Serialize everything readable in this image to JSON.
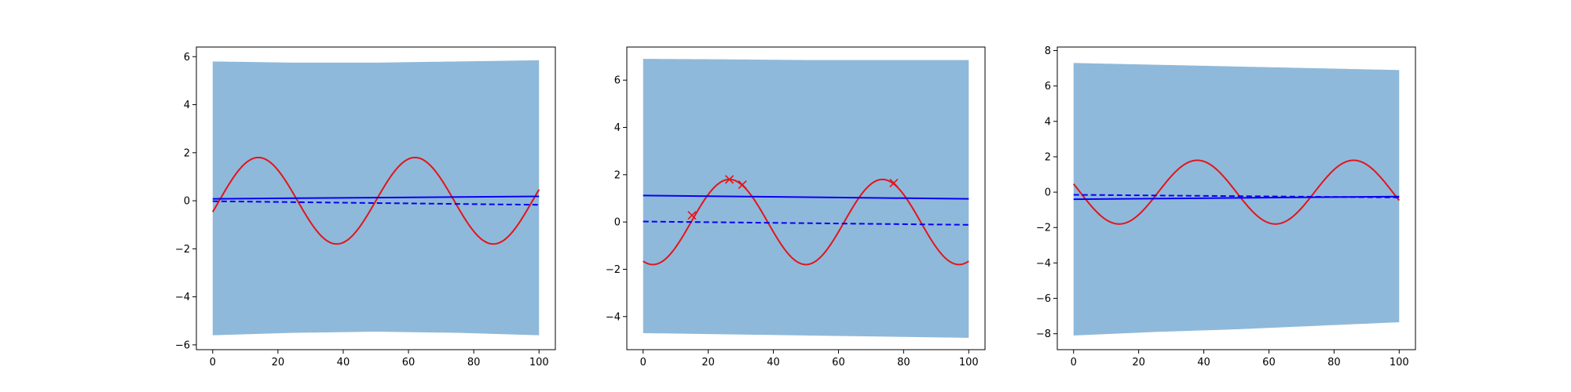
{
  "figure": {
    "background": "#ffffff"
  },
  "colors": {
    "band": "#8fb9da",
    "true_curve": "#e3141b",
    "mean_line": "#0a00f5",
    "observation": "#e3141b",
    "frame": "#000000"
  },
  "chart_data": [
    {
      "type": "line",
      "xlim": [
        -5,
        105
      ],
      "ylim": [
        -6.2,
        6.4
      ],
      "x_ticks": [
        0,
        20,
        40,
        60,
        80,
        100
      ],
      "y_ticks": [
        -6,
        -4,
        -2,
        0,
        2,
        4,
        6
      ],
      "x_tick_labels": [
        "0",
        "20",
        "40",
        "60",
        "80",
        "100"
      ],
      "y_tick_labels": [
        "−6",
        "−4",
        "−2",
        "0",
        "2",
        "4",
        "6"
      ],
      "band": {
        "x": [
          0,
          25,
          50,
          75,
          100
        ],
        "upper": [
          5.8,
          5.75,
          5.75,
          5.8,
          5.85
        ],
        "lower": [
          -5.6,
          -5.5,
          -5.45,
          -5.5,
          -5.6
        ]
      },
      "true_function": {
        "amplitude": 1.8,
        "period": 48,
        "peak_x": 14,
        "x_range": [
          0,
          100
        ]
      },
      "solid_line": {
        "x": [
          0,
          100
        ],
        "y": [
          0.08,
          0.18
        ]
      },
      "dashed_line": {
        "x": [
          0,
          100
        ],
        "y": [
          -0.02,
          -0.17
        ]
      },
      "observations": {
        "x": [],
        "y": []
      }
    },
    {
      "type": "line",
      "xlim": [
        -5,
        105
      ],
      "ylim": [
        -5.4,
        7.4
      ],
      "x_ticks": [
        0,
        20,
        40,
        60,
        80,
        100
      ],
      "y_ticks": [
        -4,
        -2,
        0,
        2,
        4,
        6
      ],
      "x_tick_labels": [
        "0",
        "20",
        "40",
        "60",
        "80",
        "100"
      ],
      "y_tick_labels": [
        "−4",
        "−2",
        "0",
        "2",
        "4",
        "6"
      ],
      "band": {
        "x": [
          0,
          25,
          50,
          75,
          100
        ],
        "upper": [
          6.9,
          6.88,
          6.85,
          6.85,
          6.85
        ],
        "lower": [
          -4.7,
          -4.75,
          -4.8,
          -4.85,
          -4.9
        ]
      },
      "true_function": {
        "amplitude": 1.8,
        "period": 47,
        "peak_x": 26.5,
        "x_range": [
          0,
          100
        ]
      },
      "solid_line": {
        "x": [
          0,
          100
        ],
        "y": [
          1.12,
          0.98
        ]
      },
      "dashed_line": {
        "x": [
          0,
          100
        ],
        "y": [
          0.02,
          -0.12
        ]
      },
      "observations": {
        "x": [
          15,
          26.5,
          30.5,
          77
        ],
        "y": [
          0.28,
          1.8,
          1.58,
          1.65
        ]
      }
    },
    {
      "type": "line",
      "xlim": [
        -5,
        105
      ],
      "ylim": [
        -8.9,
        8.2
      ],
      "x_ticks": [
        0,
        20,
        40,
        60,
        80,
        100
      ],
      "y_ticks": [
        -8,
        -6,
        -4,
        -2,
        0,
        2,
        4,
        6,
        8
      ],
      "x_tick_labels": [
        "0",
        "20",
        "40",
        "60",
        "80",
        "100"
      ],
      "y_tick_labels": [
        "−8",
        "−6",
        "−4",
        "−2",
        "0",
        "2",
        "4",
        "6",
        "8"
      ],
      "band": {
        "x": [
          0,
          25,
          50,
          75,
          100
        ],
        "upper": [
          7.3,
          7.2,
          7.1,
          7.0,
          6.9
        ],
        "lower": [
          -8.1,
          -7.9,
          -7.75,
          -7.55,
          -7.35
        ]
      },
      "true_function": {
        "amplitude": 1.8,
        "period": 48,
        "peak_x": 38,
        "x_range": [
          0,
          100
        ]
      },
      "solid_line": {
        "x": [
          0,
          100
        ],
        "y": [
          -0.4,
          -0.25
        ]
      },
      "dashed_line": {
        "x": [
          0,
          100
        ],
        "y": [
          -0.15,
          -0.3
        ]
      },
      "observations": {
        "x": [],
        "y": []
      }
    }
  ]
}
